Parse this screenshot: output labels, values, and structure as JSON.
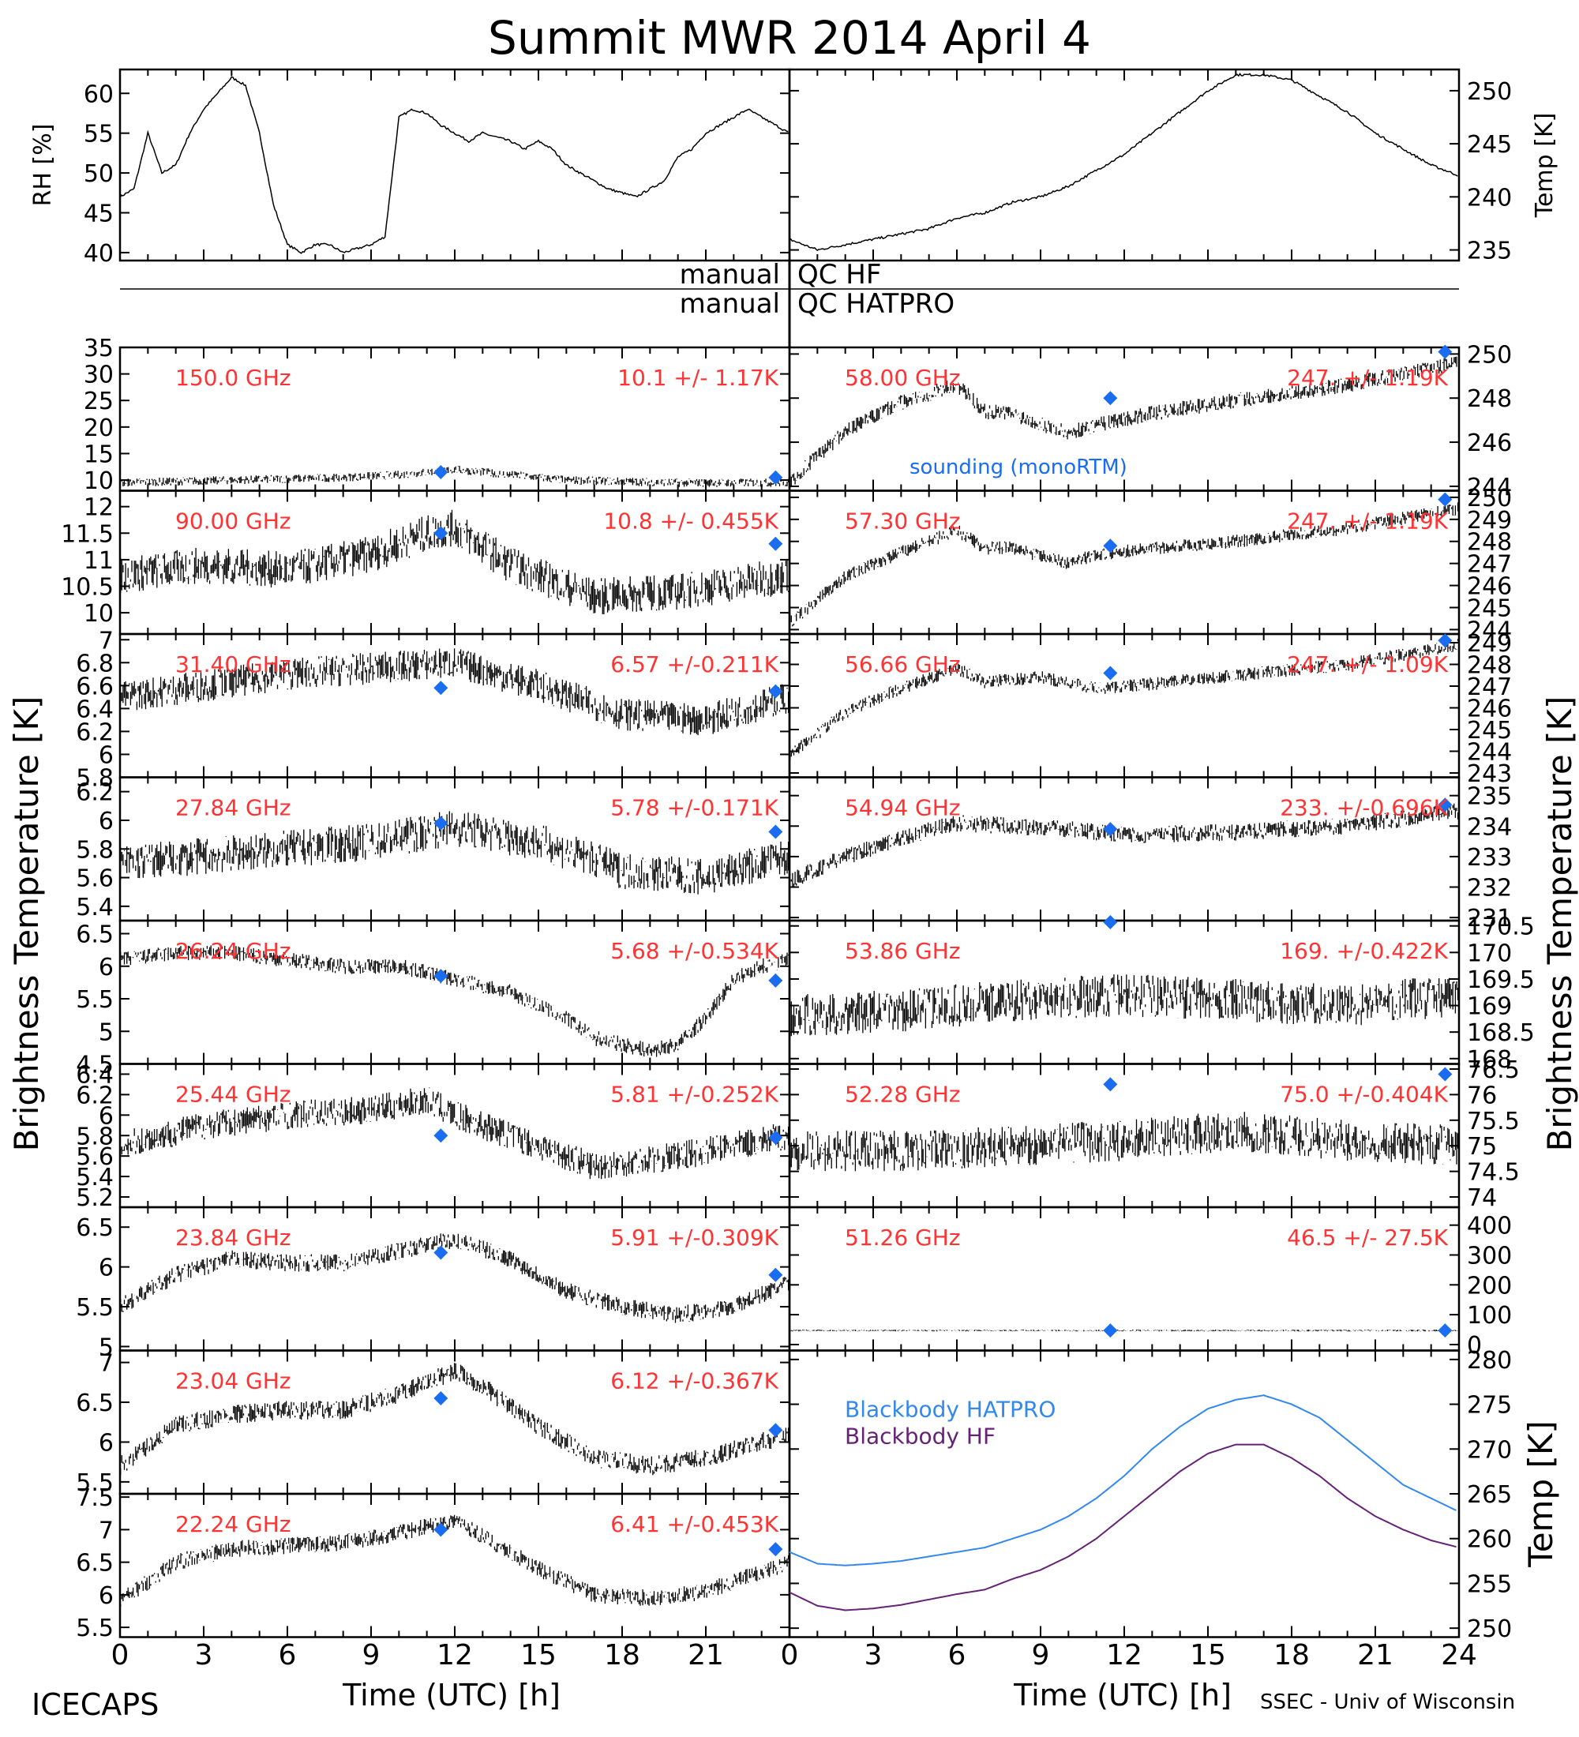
{
  "title": "Summit MWR 2014 April  4",
  "footer": {
    "left": "ICECAPS",
    "right": "SSEC - Univ of Wisconsin"
  },
  "colors": {
    "label": "#ff3333",
    "sounding": "#1a6cf0",
    "bb_hatpro": "#3388ee",
    "bb_hf": "#662277",
    "trace": "#000000"
  },
  "xaxis": {
    "label": "Time (UTC) [h]",
    "ticks": [
      0,
      3,
      6,
      9,
      12,
      15,
      18,
      21,
      24
    ],
    "range": [
      0,
      24
    ],
    "left_ticks": [
      0,
      3,
      6,
      9,
      12,
      15,
      18,
      21
    ]
  },
  "yaxis_left_label": "Brightness Temperature [K]",
  "yaxis_right_label": "Brightness Temperature [K]",
  "qc": {
    "hf_left": "manual",
    "hf_right": "QC HF",
    "hatpro_left": "manual",
    "hatpro_right": "QC HATPRO"
  },
  "chart_data": [
    {
      "type": "line",
      "panel": "rh",
      "ylabel": "RH [%]",
      "ylim": [
        39,
        63
      ],
      "ticks": [
        40,
        45,
        50,
        55,
        60
      ],
      "x": [
        0,
        0.5,
        1,
        1.5,
        2,
        2.5,
        3,
        3.5,
        4,
        4.5,
        5,
        5.5,
        6,
        6.5,
        7,
        7.5,
        8,
        8.5,
        9,
        9.5,
        10,
        10.5,
        11,
        11.5,
        12,
        12.5,
        13,
        13.5,
        14,
        14.5,
        15,
        15.5,
        16,
        16.5,
        17,
        17.5,
        18,
        18.5,
        19,
        19.5,
        20,
        20.5,
        21,
        21.5,
        22,
        22.5,
        23,
        23.5,
        24
      ],
      "values": [
        47,
        48,
        55,
        50,
        51,
        55,
        58,
        60,
        62,
        61,
        55,
        46,
        41,
        40,
        41,
        41,
        40,
        40.5,
        41,
        42,
        57,
        58,
        57.5,
        56,
        55,
        54,
        55,
        54.5,
        54,
        53,
        54,
        53,
        51,
        50,
        49,
        48,
        47.5,
        47,
        48,
        49,
        52,
        53,
        55,
        56,
        57,
        58,
        57,
        56,
        55
      ]
    },
    {
      "type": "line",
      "panel": "temp",
      "ylabel": "Temp [K]",
      "ylim": [
        234,
        252
      ],
      "ticks": [
        235,
        240,
        245,
        250
      ],
      "x": [
        0,
        1,
        2,
        3,
        4,
        5,
        6,
        7,
        8,
        9,
        10,
        11,
        12,
        13,
        14,
        15,
        16,
        17,
        18,
        19,
        20,
        21,
        22,
        23,
        24
      ],
      "values": [
        236,
        235,
        235.5,
        236,
        236.5,
        237,
        238,
        238.5,
        239.5,
        240,
        241,
        242.5,
        244,
        246,
        248,
        250,
        251.5,
        251.5,
        251,
        249.5,
        248,
        246,
        244.5,
        243,
        242
      ]
    },
    {
      "type": "line",
      "channel": "150.0 GHz",
      "stats": "10.1 +/-  1.17K",
      "side": "left",
      "row": 0,
      "ylim": [
        8,
        35
      ],
      "ticks": [
        10,
        15,
        20,
        25,
        30,
        35
      ],
      "trend_x": [
        0,
        4,
        8,
        10,
        12,
        14,
        16,
        20,
        24
      ],
      "trend_y": [
        9.5,
        10,
        10.5,
        11,
        12,
        11,
        10,
        9.5,
        9.5
      ],
      "noise": 0.8,
      "sounding": [
        [
          11.5,
          11.5
        ],
        [
          23.5,
          10.5
        ]
      ],
      "annotation": "sounding (monoRTM)"
    },
    {
      "type": "line",
      "channel": "90.00 GHz",
      "stats": "10.8 +/- 0.455K",
      "side": "left",
      "row": 1,
      "ylim": [
        9.6,
        12.3
      ],
      "ticks": [
        10.0,
        10.5,
        11.0,
        11.5,
        12.0
      ],
      "trend_x": [
        0,
        3,
        6,
        9,
        11,
        12,
        14,
        17,
        20,
        24
      ],
      "trend_y": [
        10.7,
        10.9,
        10.8,
        11.1,
        11.5,
        11.6,
        10.9,
        10.3,
        10.4,
        10.7
      ],
      "noise": 0.35,
      "sounding": [
        [
          11.5,
          11.5
        ],
        [
          23.5,
          11.3
        ]
      ]
    },
    {
      "type": "line",
      "channel": "31.40 GHz",
      "stats": "6.57 +/-0.211K",
      "side": "left",
      "row": 2,
      "ylim": [
        5.8,
        7.05
      ],
      "ticks": [
        5.8,
        6.0,
        6.2,
        6.4,
        6.6,
        6.8,
        7.0
      ],
      "trend_x": [
        0,
        3,
        6,
        9,
        12,
        15,
        18,
        21,
        24
      ],
      "trend_y": [
        6.5,
        6.6,
        6.7,
        6.75,
        6.8,
        6.6,
        6.35,
        6.3,
        6.5
      ],
      "noise": 0.14,
      "sounding": [
        [
          11.5,
          6.58
        ],
        [
          23.5,
          6.55
        ]
      ]
    },
    {
      "type": "line",
      "channel": "27.84 GHz",
      "stats": "5.78 +/-0.171K",
      "side": "left",
      "row": 3,
      "ylim": [
        5.3,
        6.3
      ],
      "ticks": [
        5.4,
        5.6,
        5.8,
        6.0,
        6.2
      ],
      "trend_x": [
        0,
        3,
        6,
        9,
        12,
        15,
        18,
        21,
        24
      ],
      "trend_y": [
        5.7,
        5.75,
        5.8,
        5.85,
        5.95,
        5.85,
        5.65,
        5.6,
        5.75
      ],
      "noise": 0.13,
      "sounding": [
        [
          11.5,
          5.98
        ],
        [
          23.5,
          5.92
        ]
      ]
    },
    {
      "type": "line",
      "channel": "26.24 GHz",
      "stats": "5.68 +/-0.534K",
      "side": "left",
      "row": 4,
      "ylim": [
        4.5,
        6.7
      ],
      "ticks": [
        4.5,
        5.0,
        5.5,
        6.0,
        6.5
      ],
      "trend_x": [
        0,
        2,
        4,
        6,
        8,
        10,
        12,
        14,
        16,
        17,
        18,
        19,
        20,
        21,
        22,
        23,
        24
      ],
      "trend_y": [
        6.1,
        6.2,
        6.2,
        6.1,
        6.0,
        6.0,
        5.8,
        5.6,
        5.2,
        4.9,
        4.8,
        4.7,
        4.8,
        5.2,
        5.8,
        6.0,
        6.1
      ],
      "noise": 0.12,
      "sounding": [
        [
          11.5,
          5.85
        ],
        [
          23.5,
          5.78
        ]
      ]
    },
    {
      "type": "line",
      "channel": "25.44 GHz",
      "stats": "5.81 +/-0.252K",
      "side": "left",
      "row": 5,
      "ylim": [
        5.1,
        6.5
      ],
      "ticks": [
        5.2,
        5.4,
        5.6,
        5.8,
        6.0,
        6.2,
        6.4
      ],
      "trend_x": [
        0,
        3,
        6,
        9,
        11,
        12,
        14,
        17,
        20,
        24
      ],
      "trend_y": [
        5.7,
        5.9,
        6.0,
        6.05,
        6.15,
        6.0,
        5.8,
        5.5,
        5.6,
        5.8
      ],
      "noise": 0.14,
      "sounding": [
        [
          11.5,
          5.8
        ],
        [
          23.5,
          5.78
        ]
      ]
    },
    {
      "type": "line",
      "channel": "23.84 GHz",
      "stats": "5.91 +/-0.309K",
      "side": "left",
      "row": 6,
      "ylim": [
        4.95,
        6.75
      ],
      "ticks": [
        5.0,
        5.5,
        6.0,
        6.5
      ],
      "trend_x": [
        0,
        2,
        4,
        6,
        8,
        10,
        12,
        14,
        16,
        18,
        20,
        22,
        24
      ],
      "trend_y": [
        5.5,
        5.9,
        6.1,
        6.05,
        6.05,
        6.2,
        6.35,
        6.1,
        5.7,
        5.5,
        5.4,
        5.5,
        5.8
      ],
      "noise": 0.11,
      "sounding": [
        [
          11.5,
          6.18
        ],
        [
          23.5,
          5.9
        ]
      ]
    },
    {
      "type": "line",
      "channel": "23.04 GHz",
      "stats": "6.12 +/-0.367K",
      "side": "left",
      "row": 7,
      "ylim": [
        5.35,
        7.15
      ],
      "ticks": [
        5.5,
        6.0,
        6.5,
        7.0
      ],
      "trend_x": [
        0,
        2,
        4,
        6,
        8,
        10,
        12,
        13,
        15,
        17,
        19,
        21,
        24
      ],
      "trend_y": [
        5.7,
        6.2,
        6.35,
        6.4,
        6.4,
        6.6,
        6.9,
        6.7,
        6.2,
        5.8,
        5.7,
        5.8,
        6.1
      ],
      "noise": 0.12,
      "sounding": [
        [
          11.5,
          6.55
        ],
        [
          23.5,
          6.15
        ]
      ]
    },
    {
      "type": "line",
      "channel": "22.24 GHz",
      "stats": "6.41 +/-0.453K",
      "side": "left",
      "row": 8,
      "ylim": [
        5.35,
        7.55
      ],
      "ticks": [
        5.5,
        6.0,
        6.5,
        7.0,
        7.5
      ],
      "trend_x": [
        0,
        2,
        4,
        6,
        8,
        10,
        12,
        13,
        15,
        17,
        19,
        21,
        24
      ],
      "trend_y": [
        5.9,
        6.5,
        6.7,
        6.75,
        6.8,
        6.95,
        7.15,
        6.9,
        6.4,
        6.0,
        5.95,
        6.05,
        6.5
      ],
      "noise": 0.13,
      "sounding": [
        [
          11.5,
          7.0
        ],
        [
          23.5,
          6.7
        ]
      ]
    },
    {
      "type": "line",
      "channel": "58.00 GHz",
      "stats": "247. +/- 1.19K",
      "side": "right",
      "row": 0,
      "ylim": [
        243.8,
        250.3
      ],
      "ticks": [
        244,
        246,
        248,
        250
      ],
      "trend_x": [
        0,
        2,
        4,
        6,
        7,
        8,
        10,
        11,
        13,
        16,
        20,
        24
      ],
      "trend_y": [
        244.2,
        246.5,
        247.8,
        248.6,
        247.4,
        247.3,
        246.4,
        246.8,
        247.3,
        247.9,
        248.6,
        249.6
      ],
      "noise": 0.35,
      "sounding": [
        [
          11.5,
          248.0
        ],
        [
          23.5,
          250.1
        ]
      ]
    },
    {
      "type": "line",
      "channel": "57.30 GHz",
      "stats": "247. +/- 1.19K",
      "side": "right",
      "row": 1,
      "ylim": [
        243.8,
        250.3
      ],
      "ticks": [
        244,
        245,
        246,
        247,
        248,
        249,
        250
      ],
      "trend_x": [
        0,
        2,
        4,
        6,
        7,
        8,
        10,
        11,
        13,
        16,
        20,
        24
      ],
      "trend_y": [
        244.3,
        246.4,
        247.5,
        248.5,
        247.7,
        247.7,
        247.0,
        247.4,
        247.7,
        248.0,
        248.6,
        249.5
      ],
      "noise": 0.3,
      "sounding": [
        [
          11.5,
          247.8
        ],
        [
          23.5,
          249.9
        ]
      ]
    },
    {
      "type": "line",
      "channel": "56.66 GHz",
      "stats": "247. +/- 1.09K",
      "side": "right",
      "row": 2,
      "ylim": [
        242.8,
        249.4
      ],
      "ticks": [
        243,
        244,
        245,
        246,
        247,
        248,
        249
      ],
      "trend_x": [
        0,
        2,
        4,
        6,
        7,
        9,
        11,
        13,
        16,
        20,
        24
      ],
      "trend_y": [
        243.8,
        245.8,
        246.9,
        247.8,
        247.2,
        247.4,
        246.9,
        247.1,
        247.5,
        248.0,
        248.9
      ],
      "noise": 0.3,
      "sounding": [
        [
          11.5,
          247.6
        ],
        [
          23.5,
          249.1
        ]
      ]
    },
    {
      "type": "line",
      "channel": "54.94 GHz",
      "stats": "233. +/-0.696K",
      "side": "right",
      "row": 3,
      "ylim": [
        230.9,
        235.6
      ],
      "ticks": [
        231,
        232,
        233,
        234,
        235
      ],
      "trend_x": [
        0,
        2,
        4,
        6,
        8,
        10,
        12,
        16,
        20,
        24
      ],
      "trend_y": [
        232.2,
        233.0,
        233.6,
        234.1,
        234.0,
        233.9,
        233.7,
        233.8,
        234.0,
        234.5
      ],
      "noise": 0.28,
      "sounding": [
        [
          11.5,
          233.9
        ],
        [
          23.5,
          234.7
        ]
      ]
    },
    {
      "type": "line",
      "channel": "53.86 GHz",
      "stats": "169. +/-0.422K",
      "side": "right",
      "row": 4,
      "ylim": [
        167.9,
        170.6
      ],
      "ticks": [
        168.0,
        168.5,
        169.0,
        169.5,
        170.0,
        170.5
      ],
      "trend_x": [
        0,
        4,
        8,
        12,
        16,
        20,
        24
      ],
      "trend_y": [
        168.8,
        168.9,
        169.1,
        169.2,
        169.1,
        169.0,
        169.2
      ],
      "noise": 0.4,
      "sounding": [
        [
          11.5,
          170.7
        ]
      ]
    },
    {
      "type": "line",
      "channel": "52.28 GHz",
      "stats": "75.0 +/-0.404K",
      "side": "right",
      "row": 5,
      "ylim": [
        73.8,
        76.6
      ],
      "ticks": [
        74.0,
        74.5,
        75.0,
        75.5,
        76.0,
        76.5
      ],
      "trend_x": [
        0,
        4,
        8,
        12,
        16,
        20,
        24
      ],
      "trend_y": [
        74.9,
        74.9,
        75.0,
        75.1,
        75.3,
        75.1,
        75.0
      ],
      "noise": 0.4,
      "sounding": [
        [
          11.5,
          76.2
        ],
        [
          23.5,
          76.4
        ]
      ]
    },
    {
      "type": "line",
      "channel": "51.26 GHz",
      "stats": "46.5 +/- 27.5K",
      "side": "right",
      "row": 6,
      "ylim": [
        -20,
        460
      ],
      "ticks": [
        0,
        100,
        200,
        300,
        400
      ],
      "trend_x": [
        0,
        24
      ],
      "trend_y": [
        47,
        47
      ],
      "noise": 3,
      "sounding": [
        [
          11.5,
          47
        ],
        [
          23.5,
          47
        ]
      ]
    },
    {
      "type": "line",
      "panel": "blackbody",
      "side": "right",
      "ylabel": "Temp [K]",
      "ylim": [
        249,
        281
      ],
      "ticks": [
        250,
        255,
        260,
        265,
        270,
        275,
        280
      ],
      "x": [
        0,
        1,
        2,
        3,
        4,
        5,
        6,
        7,
        8,
        9,
        10,
        11,
        12,
        13,
        14,
        15,
        16,
        17,
        18,
        19,
        20,
        21,
        22,
        23,
        24
      ],
      "series": [
        {
          "name": "Blackbody HATPRO",
          "values": [
            258.5,
            257.2,
            257.0,
            257.2,
            257.5,
            258.0,
            258.5,
            259.0,
            260.0,
            261.0,
            262.5,
            264.5,
            267.0,
            270.0,
            272.5,
            274.5,
            275.5,
            276.0,
            275.0,
            273.5,
            271.0,
            268.5,
            266.0,
            264.5,
            263.0
          ]
        },
        {
          "name": "Blackbody HF",
          "values": [
            254.0,
            252.5,
            252.0,
            252.2,
            252.6,
            253.2,
            253.8,
            254.3,
            255.5,
            256.5,
            258.0,
            260.0,
            262.5,
            265.0,
            267.5,
            269.5,
            270.5,
            270.5,
            269.0,
            267.0,
            264.5,
            262.5,
            261.0,
            259.8,
            259.0
          ]
        }
      ]
    }
  ]
}
